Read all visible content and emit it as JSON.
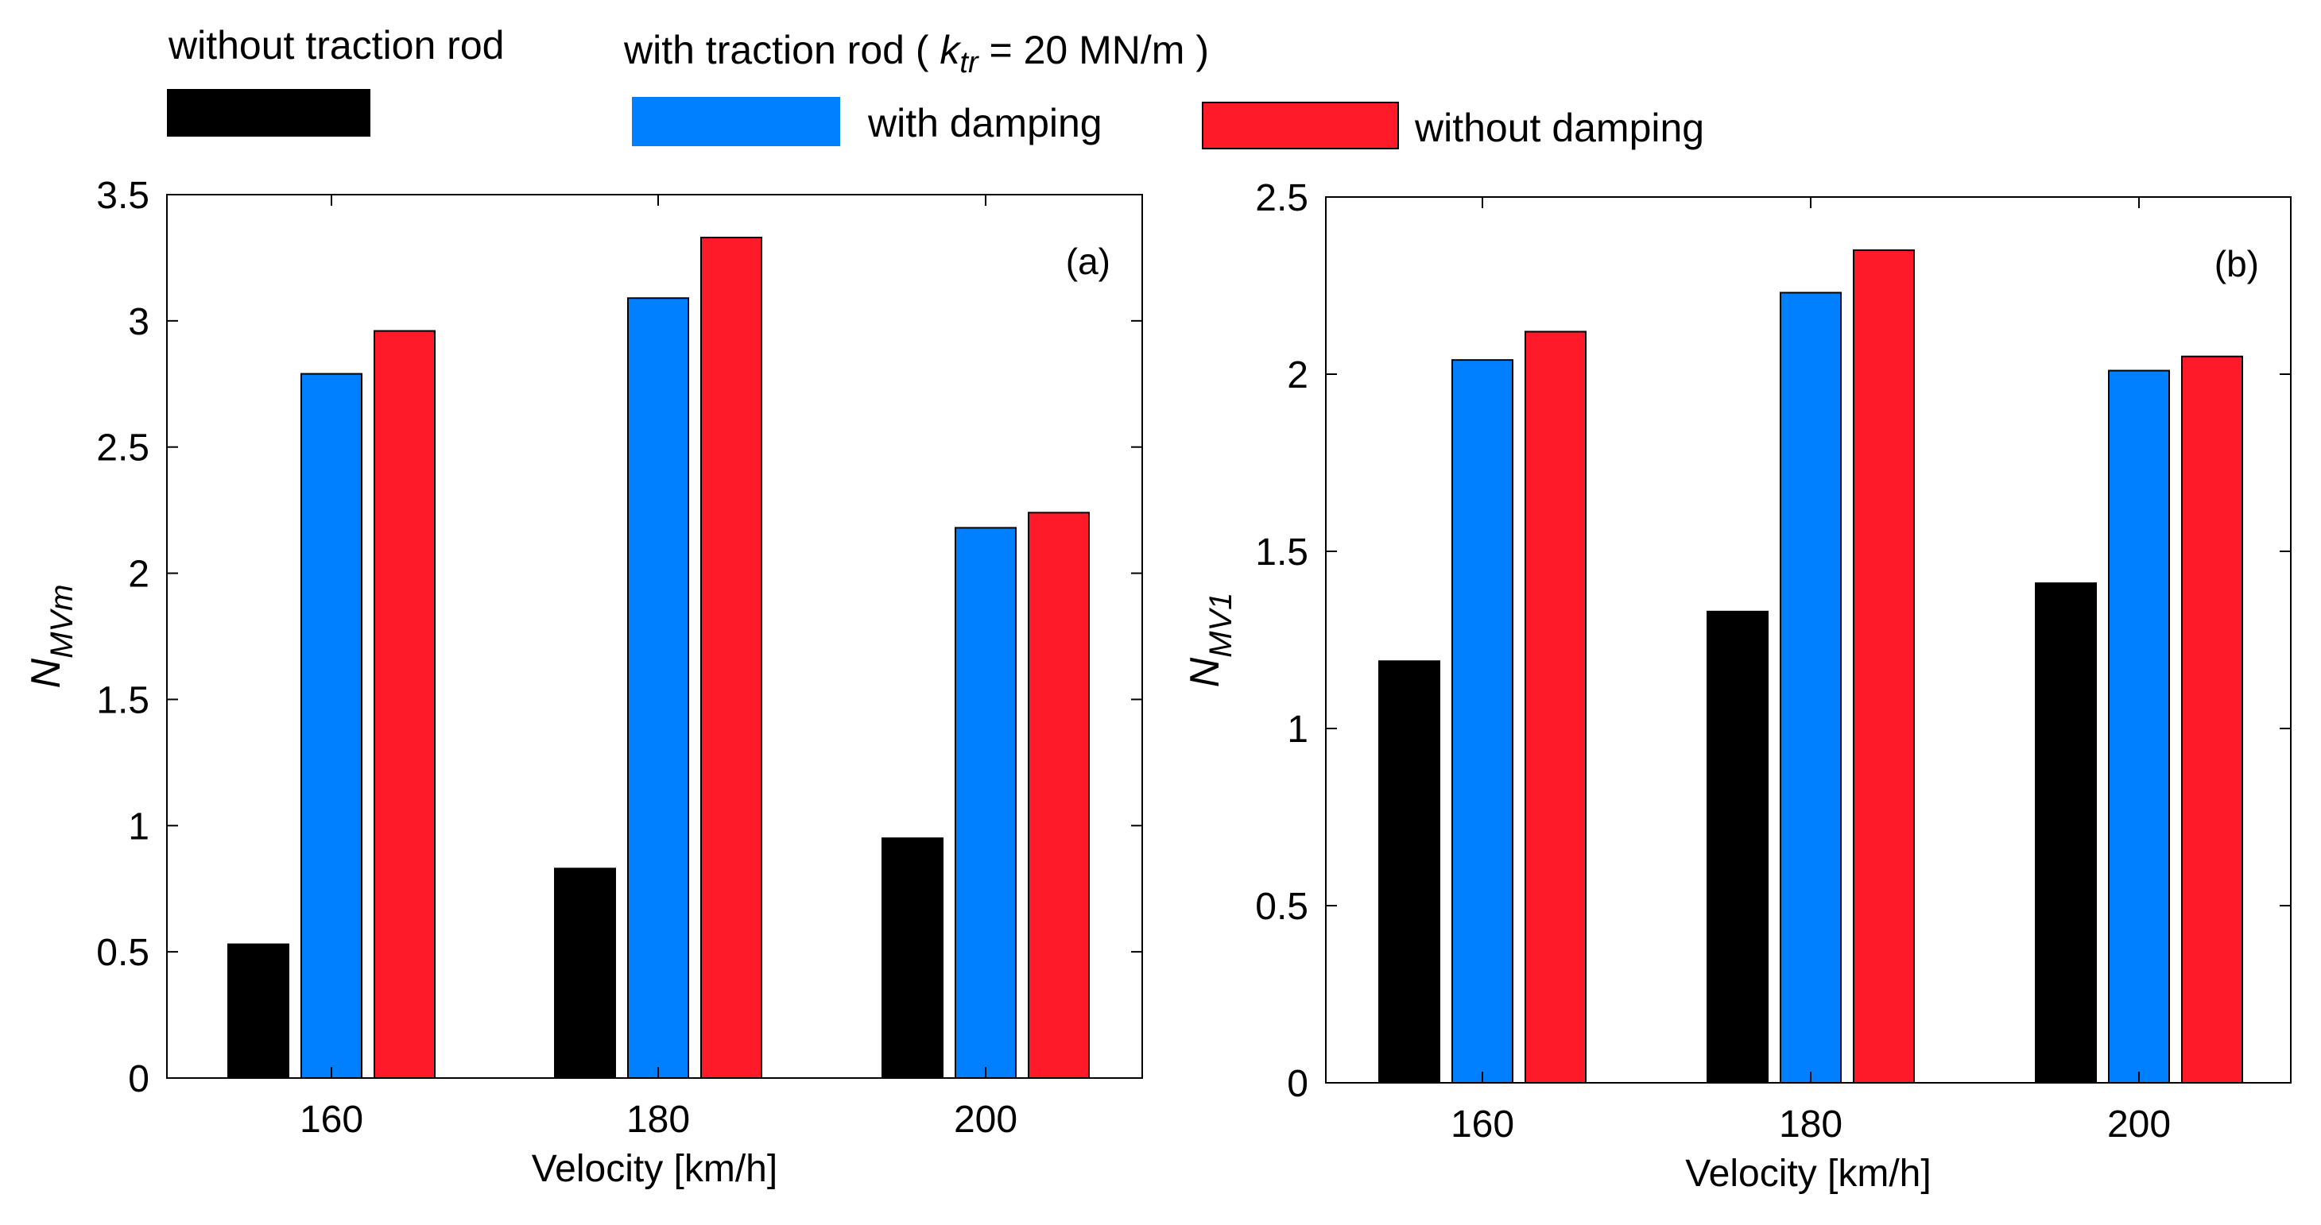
{
  "colors": {
    "without_traction_rod": "#000000",
    "with_damping": "#0080ff",
    "without_damping": "#ff1a2a"
  },
  "legend": {
    "group1_title": "without traction rod",
    "group2_title_prefix": "with traction rod",
    "group2_param_symbol": "k",
    "group2_param_subscript": "tr",
    "group2_param_value": "= 20 MN/m",
    "open_paren": "(",
    "close_paren": ")",
    "with_damping": "with damping",
    "without_damping": "without damping"
  },
  "chart_data": [
    {
      "type": "bar",
      "panel_label": "(a)",
      "categories": [
        "160",
        "180",
        "200"
      ],
      "series": [
        {
          "name": "without traction rod",
          "color": "#000000",
          "values": [
            0.53,
            0.83,
            0.95
          ]
        },
        {
          "name": "with damping",
          "color": "#0080ff",
          "values": [
            2.79,
            3.09,
            2.18
          ]
        },
        {
          "name": "without damping",
          "color": "#ff1a2a",
          "values": [
            2.96,
            3.33,
            2.24
          ]
        }
      ],
      "xlabel": "Velocity [km/h]",
      "ylabel_main": "N",
      "ylabel_sub": "MVm",
      "ylim": [
        0,
        3.5
      ],
      "yticks": [
        0,
        0.5,
        1,
        1.5,
        2,
        2.5,
        3,
        3.5
      ],
      "ytick_labels": [
        "0",
        "0.5",
        "1",
        "1.5",
        "2",
        "2.5",
        "3",
        "3.5"
      ],
      "grid": false
    },
    {
      "type": "bar",
      "panel_label": "(b)",
      "categories": [
        "160",
        "180",
        "200"
      ],
      "series": [
        {
          "name": "without traction rod",
          "color": "#000000",
          "values": [
            1.19,
            1.33,
            1.41
          ]
        },
        {
          "name": "with damping",
          "color": "#0080ff",
          "values": [
            2.04,
            2.23,
            2.01
          ]
        },
        {
          "name": "without damping",
          "color": "#ff1a2a",
          "values": [
            2.12,
            2.35,
            2.05
          ]
        }
      ],
      "xlabel": "Velocity [km/h]",
      "ylabel_main": "N",
      "ylabel_sub": "MV1",
      "ylim": [
        0,
        2.5
      ],
      "yticks": [
        0,
        0.5,
        1,
        1.5,
        2,
        2.5
      ],
      "ytick_labels": [
        "0",
        "0.5",
        "1",
        "1.5",
        "2",
        "2.5"
      ],
      "grid": false
    }
  ]
}
